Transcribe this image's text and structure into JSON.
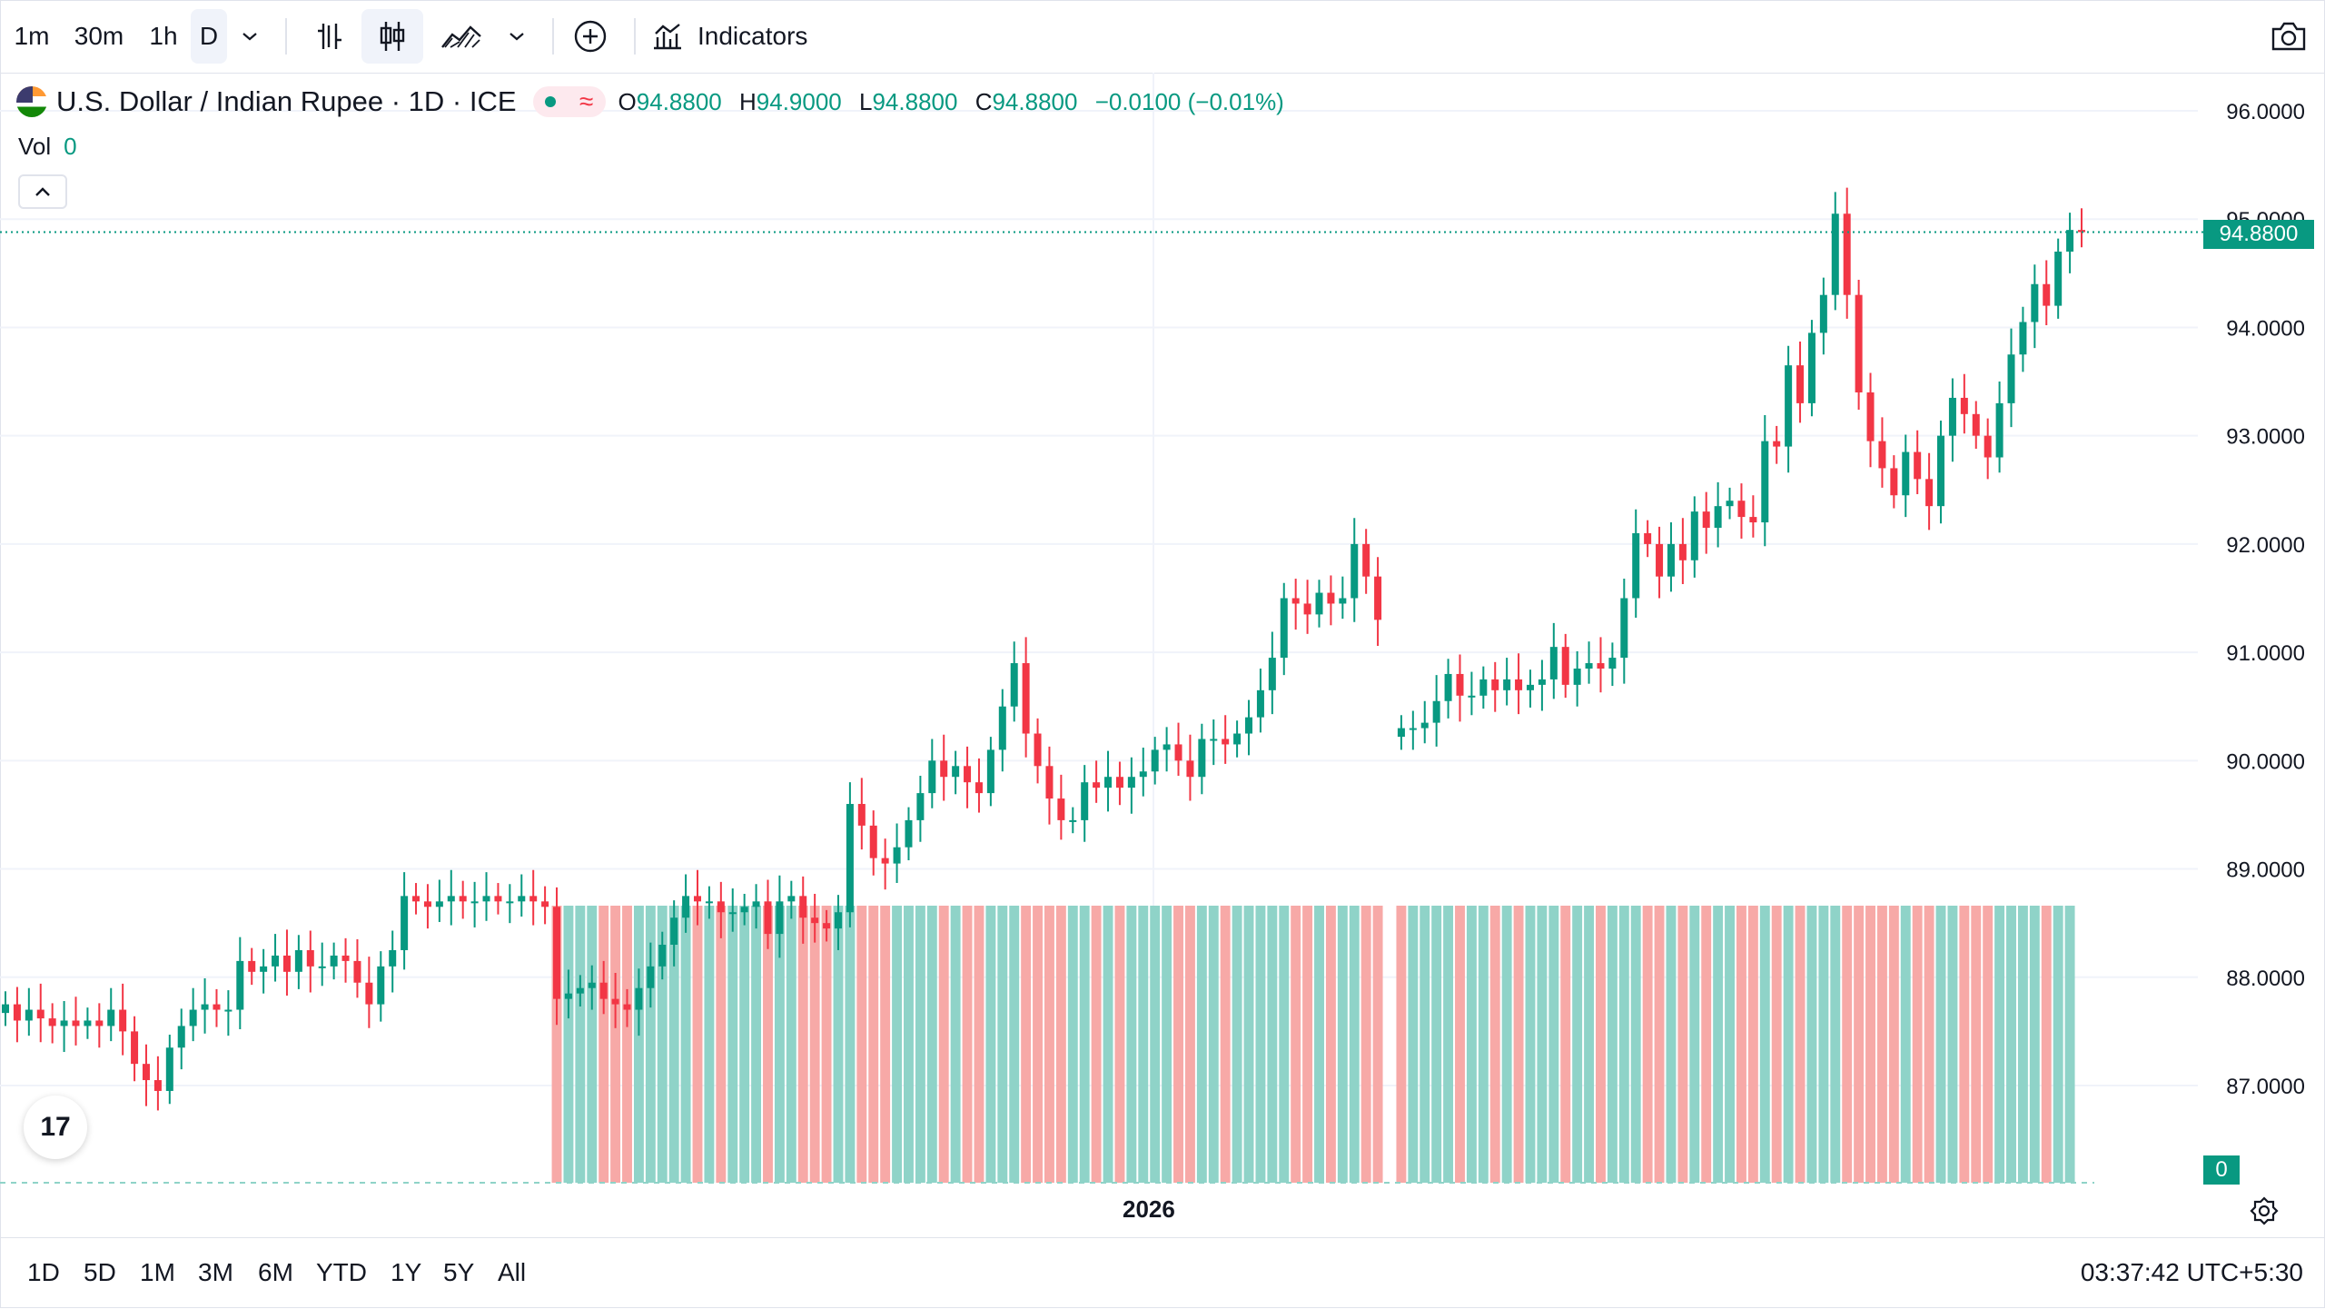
{
  "toolbar": {
    "intervals": [
      "1m",
      "30m",
      "1h",
      "D"
    ],
    "active_interval": "D",
    "indicators_label": "Indicators",
    "icons": [
      "chevron-down-icon",
      "bar-style-icon",
      "candle-style-icon",
      "area-style-icon",
      "chevron-down-icon",
      "add-compare-icon",
      "indicators-icon",
      "camera-icon"
    ]
  },
  "legend": {
    "title": "U.S. Dollar / Indian Rupee · 1D · ICE",
    "o_label": "O",
    "o": "94.8800",
    "h_label": "H",
    "h": "94.9000",
    "l_label": "L",
    "l": "94.8800",
    "c_label": "C",
    "c": "94.8800",
    "change": "−0.0100 (−0.01%)"
  },
  "volume": {
    "label": "Vol",
    "value": "0",
    "axis_value": "0"
  },
  "last_price": "94.8800",
  "x_axis_label": "2026",
  "ranges": [
    "1D",
    "5D",
    "1M",
    "3M",
    "6M",
    "YTD",
    "1Y",
    "5Y",
    "All"
  ],
  "clock": "03:37:42 UTC+5:30",
  "colors": {
    "up": "#089981",
    "down": "#f23645",
    "vol_up": "#8fd3c8",
    "vol_down": "#f7a9a7"
  },
  "chart_data": {
    "type": "candlestick",
    "y_ticks": [
      "96.0000",
      "95.0000",
      "94.0000",
      "93.0000",
      "92.0000",
      "91.0000",
      "90.0000",
      "89.0000",
      "88.0000",
      "87.0000"
    ],
    "ylim": [
      86.1,
      96.2
    ],
    "grid": true,
    "close": [
      87.75,
      87.6,
      87.7,
      87.62,
      87.55,
      87.6,
      87.55,
      87.6,
      87.55,
      87.7,
      87.5,
      87.2,
      87.05,
      86.95,
      87.35,
      87.55,
      87.7,
      87.75,
      87.7,
      87.7,
      88.15,
      88.05,
      88.1,
      88.2,
      88.05,
      88.25,
      88.1,
      88.1,
      88.2,
      88.15,
      87.95,
      87.75,
      88.1,
      88.25,
      88.75,
      88.7,
      88.65,
      88.7,
      88.75,
      88.7,
      88.7,
      88.75,
      88.7,
      88.7,
      88.75,
      88.7,
      88.65,
      87.8,
      87.85,
      87.9,
      87.95,
      87.8,
      87.75,
      87.7,
      87.9,
      88.1,
      88.3,
      88.55,
      88.75,
      88.7,
      88.7,
      88.6,
      88.6,
      88.65,
      88.7,
      88.4,
      88.7,
      88.75,
      88.55,
      88.5,
      88.45,
      88.6,
      89.6,
      89.4,
      89.1,
      89.05,
      89.2,
      89.45,
      89.7,
      90.0,
      89.85,
      89.95,
      89.8,
      89.7,
      90.1,
      90.5,
      90.9,
      90.25,
      89.95,
      89.65,
      89.45,
      89.45,
      89.8,
      89.75,
      89.85,
      89.75,
      89.85,
      89.9,
      90.1,
      90.15,
      90.0,
      89.85,
      90.2,
      90.2,
      90.15,
      90.25,
      90.4,
      90.65,
      90.95,
      91.5,
      91.45,
      91.35,
      91.55,
      91.45,
      91.5,
      92.0,
      91.7,
      91.3,
      null,
      90.3,
      90.3,
      90.35,
      90.55,
      90.8,
      90.6,
      90.6,
      90.75,
      90.65,
      90.75,
      90.65,
      90.7,
      90.75,
      91.05,
      90.7,
      90.85,
      90.9,
      90.85,
      90.95,
      91.5,
      92.1,
      92.0,
      91.7,
      92.0,
      91.85,
      92.3,
      92.15,
      92.35,
      92.4,
      92.25,
      92.2,
      92.95,
      92.9,
      93.65,
      93.3,
      93.95,
      94.3,
      95.05,
      94.3,
      93.4,
      92.95,
      92.7,
      92.45,
      92.85,
      92.6,
      92.35,
      93.0,
      93.35,
      93.2,
      93.0,
      92.8,
      93.3,
      93.75,
      94.05,
      94.4,
      94.2,
      94.7,
      94.9,
      94.88
    ],
    "volume_region_note": "",
    "volume_max": 0
  }
}
